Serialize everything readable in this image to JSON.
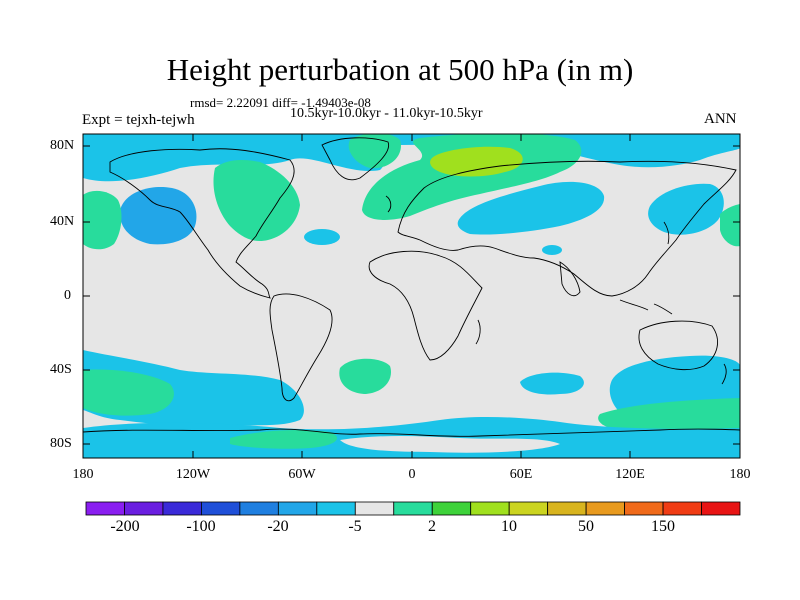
{
  "header": {
    "title": "Height perturbation at 500 hPa (in m)",
    "stats": "rmsd= 2.22091 diff= -1.49403e-08",
    "period": "10.5kyr-10.0kyr - 11.0kyr-10.5kyr",
    "experiment": "Expt = tejxh-tejwh",
    "season": "ANN"
  },
  "axes": {
    "lat_labels": [
      "80N",
      "40N",
      "0",
      "40S",
      "80S"
    ],
    "lon_labels": [
      "180",
      "120W",
      "60W",
      "0",
      "60E",
      "120E",
      "180"
    ]
  },
  "colorbar": {
    "labels": [
      "-200",
      "-100",
      "-20",
      "-5",
      "2",
      "10",
      "50",
      "150"
    ],
    "colors": [
      "#8a1ef0",
      "#6a1ee0",
      "#3a2ad8",
      "#1f4fd8",
      "#1f7fe0",
      "#22a6e8",
      "#1bc3e8",
      "#e6e6e6",
      "#28dc9c",
      "#3ed23a",
      "#a0e01e",
      "#cbd420",
      "#d8b41e",
      "#e89a1e",
      "#f06a1a",
      "#f03c14",
      "#e81414"
    ]
  },
  "colors": {
    "background": "#e6e6e6",
    "cyan": "#1bc3e8",
    "light_blue": "#22a6e8",
    "teal_green": "#28dc9c",
    "green": "#3ed23a",
    "lime": "#a0e01e"
  }
}
